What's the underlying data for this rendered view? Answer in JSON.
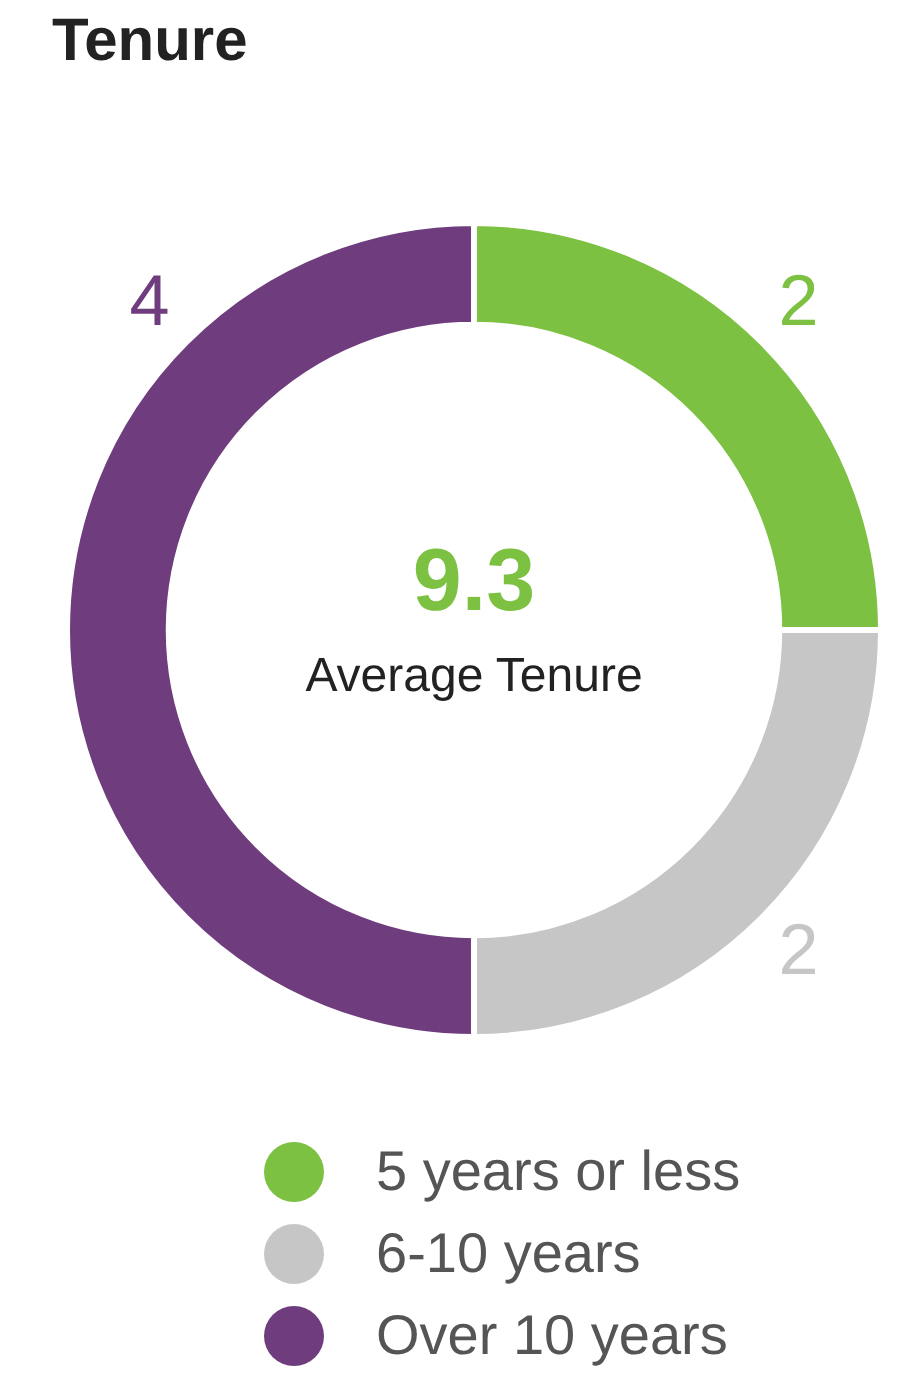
{
  "chart_data": {
    "type": "donut",
    "title": "Tenure",
    "categories": [
      "5 years or less",
      "6-10 years",
      "Over 10 years"
    ],
    "values": [
      2,
      2,
      4
    ],
    "colors": [
      "#7dc142",
      "#c6c6c7",
      "#6f3c7e"
    ],
    "data_labels": true,
    "legend": "bottom",
    "annotations": [
      "9.3",
      "Average Tenure"
    ]
  }
}
